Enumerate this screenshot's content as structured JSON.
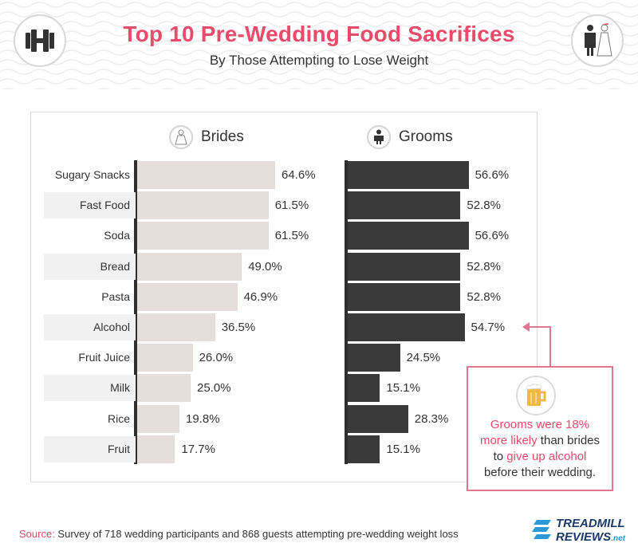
{
  "header": {
    "title": "Top 10 Pre-Wedding Food Sacrifices",
    "subtitle": "By Those Attempting to Lose Weight",
    "left_icon": "dumbbell-icon",
    "right_icon": "bride-groom-icon"
  },
  "colors": {
    "accent": "#e94b6b",
    "brides_bar": "#e5dedb",
    "grooms_bar": "#3a3a3a",
    "row_band": "#f1f1f1",
    "callout_border": "#e0778c"
  },
  "chart_data": {
    "type": "bar",
    "orientation": "horizontal",
    "title": "Top 10 Pre-Wedding Food Sacrifices",
    "subtitle": "By Those Attempting to Lose Weight",
    "categories": [
      "Sugary Snacks",
      "Fast Food",
      "Soda",
      "Bread",
      "Pasta",
      "Alcohol",
      "Fruit Juice",
      "Milk",
      "Rice",
      "Fruit"
    ],
    "series": [
      {
        "name": "Brides",
        "values": [
          64.6,
          61.5,
          61.5,
          49.0,
          46.9,
          36.5,
          26.0,
          25.0,
          19.8,
          17.7
        ]
      },
      {
        "name": "Grooms",
        "values": [
          56.6,
          52.8,
          56.6,
          52.8,
          52.8,
          54.7,
          24.5,
          15.1,
          28.3,
          15.1
        ]
      }
    ],
    "value_suffix": "%",
    "xlim": [
      0,
      100
    ],
    "grid": false,
    "legend": "group headers above each panel"
  },
  "callout": {
    "icon": "beer-mug-icon",
    "highlight1": "Grooms were 18%",
    "highlight2": "more likely",
    "text2": " than brides",
    "text3": "to ",
    "highlight3": "give up alcohol",
    "text4": "before their wedding."
  },
  "footer": {
    "source_label": "Source:",
    "source_text": " Survey of 718 wedding participants and 868 guests attempting pre-wedding weight loss",
    "logo_line1": "TREADMILL",
    "logo_line2": "REVIEWS",
    "logo_suffix": ".net"
  }
}
